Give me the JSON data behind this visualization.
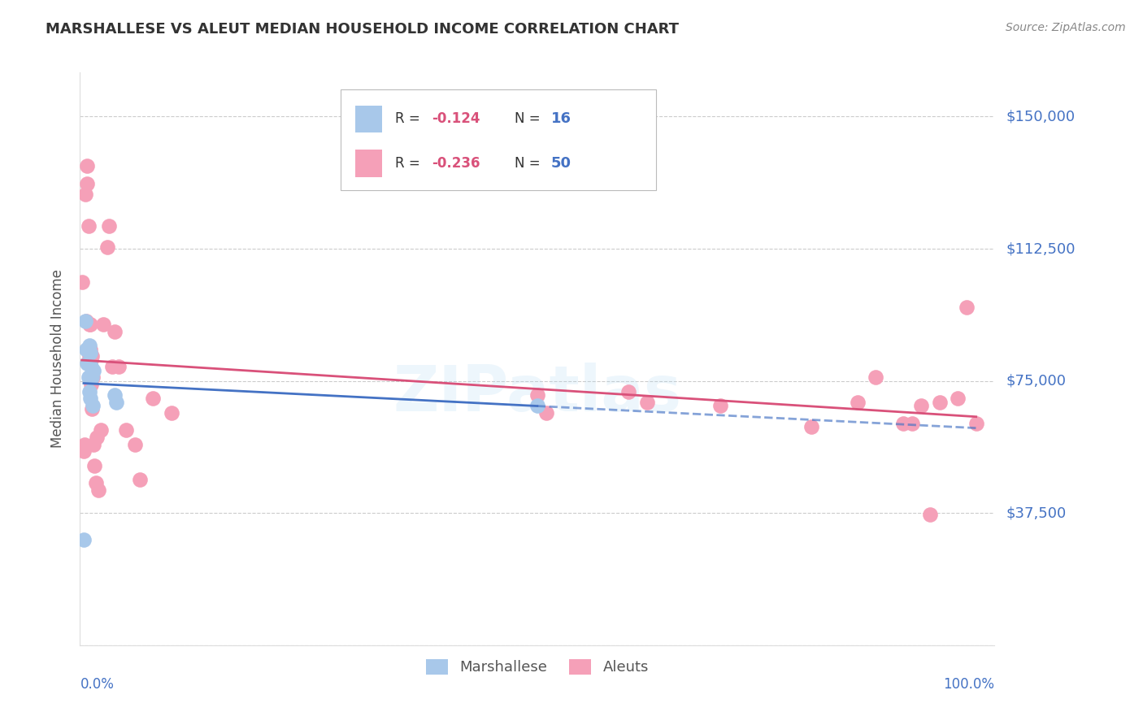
{
  "title": "MARSHALLESE VS ALEUT MEDIAN HOUSEHOLD INCOME CORRELATION CHART",
  "source": "Source: ZipAtlas.com",
  "ylabel": "Median Household Income",
  "yticks": [
    0,
    37500,
    75000,
    112500,
    150000
  ],
  "ytick_labels": [
    "",
    "$37,500",
    "$75,000",
    "$112,500",
    "$150,000"
  ],
  "ylim": [
    0,
    162500
  ],
  "xlim": [
    0,
    100
  ],
  "background_color": "#ffffff",
  "grid_color": "#cccccc",
  "marshallese_color": "#a8c8ea",
  "aleut_color": "#f5a0b8",
  "trendline_marshallese_color": "#4472c4",
  "trendline_aleut_color": "#d9517a",
  "axis_label_color": "#4472c4",
  "title_color": "#333333",
  "source_color": "#888888",
  "R_marshallese": "-0.124",
  "N_marshallese": "16",
  "R_aleut": "-0.236",
  "N_aleut": "50",
  "marshallese_x": [
    0.4,
    0.6,
    0.7,
    0.8,
    0.9,
    1.0,
    1.0,
    1.1,
    1.1,
    1.2,
    1.3,
    1.4,
    1.5,
    3.8,
    4.0,
    50.0
  ],
  "marshallese_y": [
    30000,
    92000,
    84000,
    80000,
    76000,
    72000,
    85000,
    70000,
    83000,
    79000,
    76000,
    68000,
    78000,
    71000,
    69000,
    68000
  ],
  "aleut_x": [
    0.2,
    0.4,
    0.5,
    0.6,
    0.7,
    0.8,
    0.8,
    0.9,
    1.0,
    1.0,
    1.1,
    1.1,
    1.2,
    1.2,
    1.3,
    1.3,
    1.4,
    1.5,
    1.6,
    1.7,
    1.8,
    2.0,
    2.3,
    2.5,
    3.0,
    3.2,
    3.5,
    3.8,
    4.2,
    5.0,
    6.0,
    6.5,
    8.0,
    10.0,
    50.0,
    51.0,
    60.0,
    62.0,
    70.0,
    80.0,
    85.0,
    87.0,
    90.0,
    91.0,
    92.0,
    93.0,
    94.0,
    96.0,
    97.0,
    98.0
  ],
  "aleut_y": [
    103000,
    55000,
    57000,
    128000,
    92000,
    136000,
    131000,
    119000,
    91000,
    82000,
    91000,
    84000,
    81000,
    74000,
    82000,
    67000,
    76000,
    57000,
    51000,
    46000,
    59000,
    44000,
    61000,
    91000,
    113000,
    119000,
    79000,
    89000,
    79000,
    61000,
    57000,
    47000,
    70000,
    66000,
    71000,
    66000,
    72000,
    69000,
    68000,
    62000,
    69000,
    76000,
    63000,
    63000,
    68000,
    37000,
    69000,
    70000,
    96000,
    63000
  ]
}
